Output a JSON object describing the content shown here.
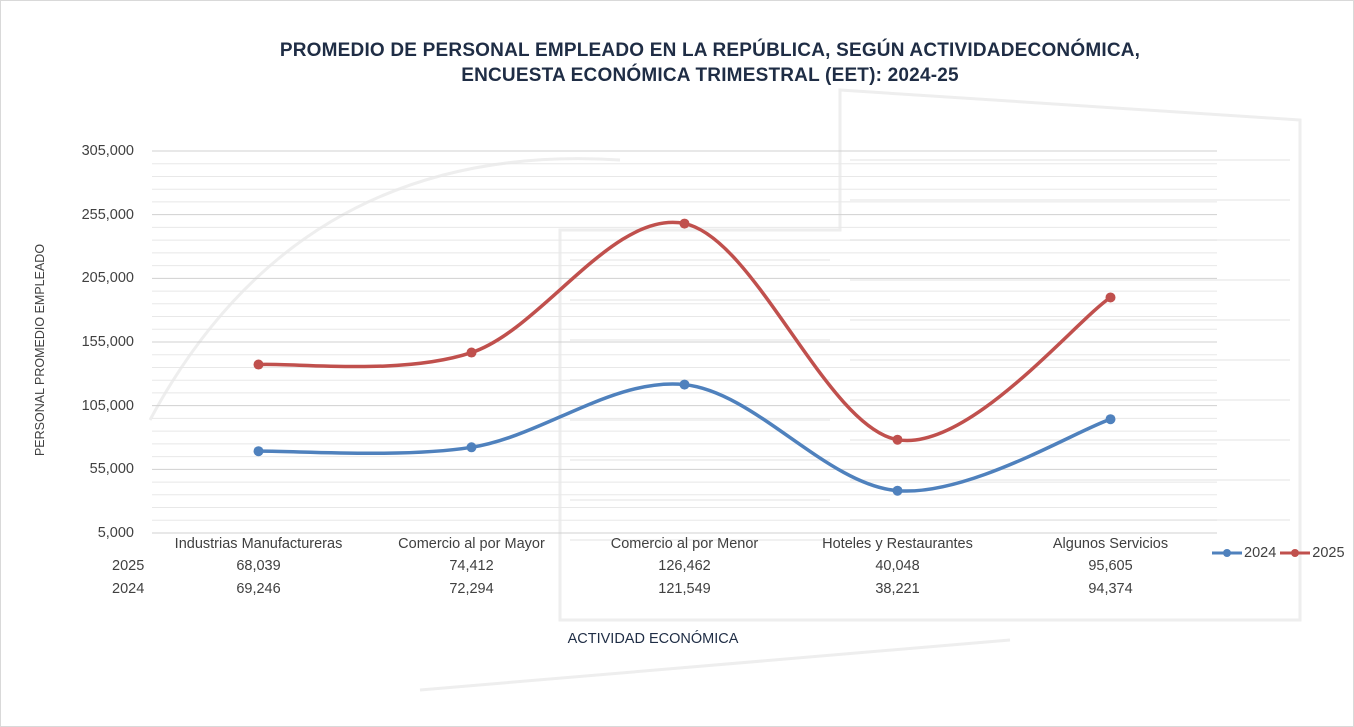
{
  "chart_data": {
    "type": "line",
    "stacked": true,
    "title_lines": [
      "PROMEDIO DE PERSONAL EMPLEADO EN LA REPÚBLICA, SEGÚN ACTIVIDADECONÓMICA,",
      "ENCUESTA ECONÓMICA TRIMESTRAL (EET):   2024-25"
    ],
    "xlabel": "ACTIVIDAD ECONÓMICA",
    "ylabel": "PERSONAL PROMEDIO  EMPLEADO",
    "ylim": [
      5000,
      305000
    ],
    "yticks": [
      "305,000",
      "255,000",
      "205,000",
      "155,000",
      "105,000",
      "55,000",
      "5,000"
    ],
    "ytick_values": [
      305000,
      255000,
      205000,
      155000,
      105000,
      55000,
      5000
    ],
    "minor_step": 10000,
    "grid": true,
    "categories": [
      "Industrias Manufactureras",
      "Comercio al por Mayor",
      "Comercio al por Menor",
      "Hoteles y Restaurantes",
      "Algunos Servicios"
    ],
    "series": [
      {
        "name": "2024",
        "color": "#4f81bd",
        "values": [
          69246,
          72294,
          121549,
          38221,
          94374
        ]
      },
      {
        "name": "2025",
        "color": "#c0504d",
        "values": [
          68039,
          74412,
          126462,
          40048,
          95605
        ]
      }
    ],
    "data_table": {
      "rows": [
        {
          "label": "2025",
          "cells": [
            "68,039",
            "74,412",
            "126,462",
            "40,048",
            "95,605"
          ]
        },
        {
          "label": "2024",
          "cells": [
            "69,246",
            "72,294",
            "121,549",
            "38,221",
            "94,374"
          ]
        }
      ]
    },
    "legend": {
      "position": "right",
      "entries": [
        "2024",
        "2025"
      ]
    }
  }
}
